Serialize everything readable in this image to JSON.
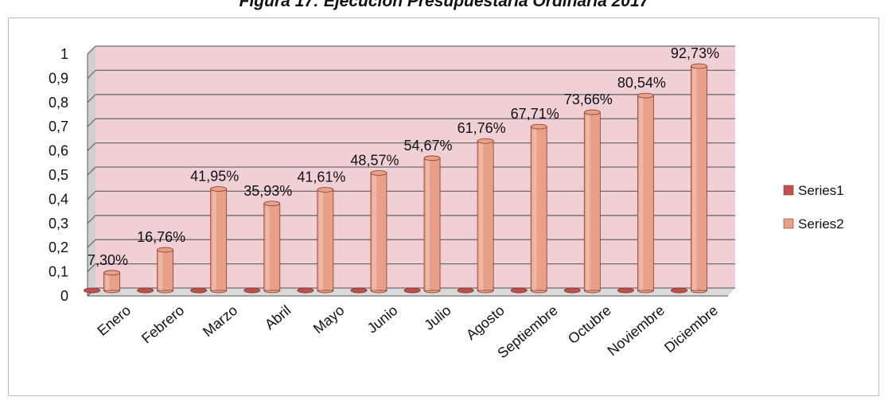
{
  "figure_title": "Figura 17: Ejecución Presupuestaria Ordinaria 2017",
  "colors": {
    "series1": "#c0504d",
    "series2": "#e9a088",
    "wall": "#f0d0d4",
    "grid": "#6e6e6e"
  },
  "chart_data": {
    "type": "bar",
    "title": "",
    "xlabel": "",
    "ylabel": "",
    "ylim": [
      0,
      1
    ],
    "yticks": [
      "0",
      "0,1",
      "0,2",
      "0,3",
      "0,4",
      "0,5",
      "0,6",
      "0,7",
      "0,8",
      "0,9",
      "1"
    ],
    "categories": [
      "Enero",
      "Febrero",
      "Marzo",
      "Abril",
      "Mayo",
      "Junio",
      "Julio",
      "Agosto",
      "Septiembre",
      "Octubre",
      "Noviembre",
      "Diciembre"
    ],
    "series": [
      {
        "name": "Series1",
        "values": [
          0,
          0,
          0,
          0,
          0,
          0,
          0,
          0,
          0,
          0,
          0,
          0
        ]
      },
      {
        "name": "Series2",
        "values": [
          0.073,
          0.1676,
          0.4195,
          0.3593,
          0.4161,
          0.4857,
          0.5467,
          0.6176,
          0.6771,
          0.7366,
          0.8054,
          0.9273
        ],
        "labels": [
          "7,30%",
          "16,76%",
          "41,95%",
          "35,93%",
          "41,61%",
          "48,57%",
          "54,67%",
          "61,76%",
          "67,71%",
          "73,66%",
          "80,54%",
          "92,73%"
        ]
      }
    ],
    "grid": true,
    "style": "3d-cylinder",
    "legend_position": "right"
  }
}
